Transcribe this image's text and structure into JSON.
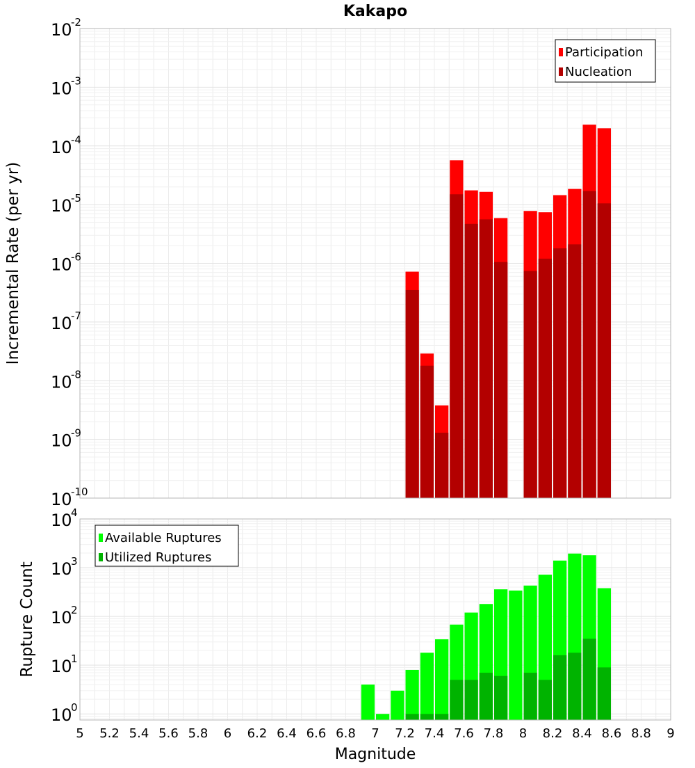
{
  "chart_data": [
    {
      "type": "bar",
      "title": "Kakapo",
      "ylabel": "Incremental Rate (per yr)",
      "xlabel": "",
      "xlim": [
        5,
        9
      ],
      "ylim": [
        1e-10,
        0.01
      ],
      "yscale": "log",
      "y_tick_exponents": [
        "-2",
        "-3",
        "-4",
        "-5",
        "-6",
        "-7",
        "-8",
        "-9",
        "-10"
      ],
      "grid": true,
      "legend_position": "top-right",
      "bar_width": 0.1,
      "x": [
        7.25,
        7.35,
        7.45,
        7.55,
        7.65,
        7.75,
        7.85,
        8.05,
        8.15,
        8.25,
        8.35,
        8.45,
        8.55
      ],
      "series": [
        {
          "name": "Participation",
          "color": "#ff0000",
          "values": [
            7.2e-07,
            2.9e-08,
            3.8e-09,
            5.7e-05,
            1.75e-05,
            1.65e-05,
            5.9e-06,
            7.8e-06,
            7.4e-06,
            1.45e-05,
            1.85e-05,
            0.00023,
            0.0002
          ]
        },
        {
          "name": "Nucleation",
          "color": "#b30000",
          "values": [
            3.5e-07,
            1.8e-08,
            1.3e-09,
            1.5e-05,
            4.7e-06,
            5.6e-06,
            1.05e-06,
            7.4e-07,
            1.2e-06,
            1.8e-06,
            2.1e-06,
            1.7e-05,
            1.05e-05
          ]
        }
      ]
    },
    {
      "type": "bar",
      "title": "",
      "ylabel": "Rupture Count",
      "xlabel": "Magnitude",
      "xlim": [
        5,
        9
      ],
      "ylim": [
        0.75,
        10000
      ],
      "yscale": "log",
      "y_tick_exponents": [
        "4",
        "3",
        "2",
        "1",
        "0"
      ],
      "x_ticks": [
        "5",
        "5.2",
        "5.4",
        "5.6",
        "5.8",
        "6",
        "6.2",
        "6.4",
        "6.6",
        "6.8",
        "7",
        "7.2",
        "7.4",
        "7.6",
        "7.8",
        "8",
        "8.2",
        "8.4",
        "8.6",
        "8.8",
        "9"
      ],
      "grid": true,
      "legend_position": "top-left",
      "bar_width": 0.1,
      "x": [
        6.95,
        7.05,
        7.15,
        7.25,
        7.35,
        7.45,
        7.55,
        7.65,
        7.75,
        7.85,
        7.95,
        8.05,
        8.15,
        8.25,
        8.35,
        8.45,
        8.55
      ],
      "series": [
        {
          "name": "Available Ruptures",
          "color": "#00ff00",
          "values": [
            4,
            1,
            3,
            8,
            18,
            34,
            68,
            120,
            180,
            360,
            340,
            430,
            720,
            1400,
            1950,
            1800,
            380
          ]
        },
        {
          "name": "Utilized Ruptures",
          "color": "#00b300",
          "values": [
            0,
            0,
            0,
            1,
            1,
            1,
            5,
            5,
            7,
            6,
            0,
            7,
            5,
            16,
            18,
            35,
            9
          ]
        }
      ]
    }
  ]
}
